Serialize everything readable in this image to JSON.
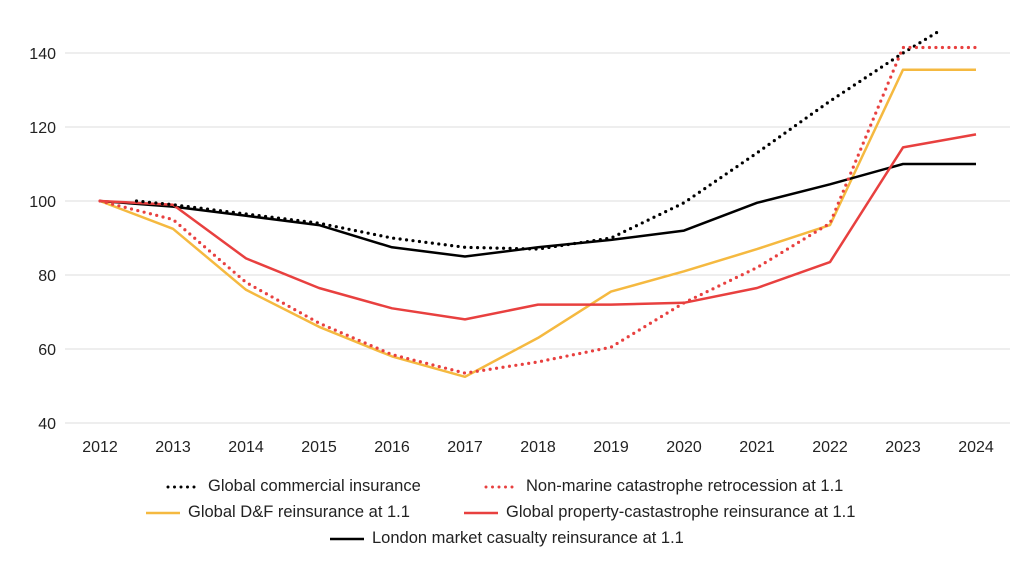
{
  "chart_data": {
    "type": "line",
    "title": "",
    "xlabel": "",
    "ylabel": "",
    "x": [
      2012,
      2013,
      2014,
      2015,
      2016,
      2017,
      2018,
      2019,
      2020,
      2021,
      2022,
      2023,
      2024
    ],
    "x_tick_labels": [
      "2012",
      "2013",
      "2014",
      "2015",
      "2016",
      "2017",
      "2018",
      "2019",
      "2020",
      "2021",
      "2022",
      "2023",
      "2024"
    ],
    "y_ticks": [
      40,
      60,
      80,
      100,
      120,
      140
    ],
    "y_tick_labels": [
      "40",
      "60",
      "80",
      "100",
      "120",
      "140"
    ],
    "ylim": [
      40,
      146
    ],
    "grid": "horizontal",
    "legend_position": "bottom",
    "series": [
      {
        "name": "Global commercial insurance",
        "color": "#000000",
        "style": "dotted",
        "points": [
          [
            2012.5,
            100
          ],
          [
            2013,
            99
          ],
          [
            2014,
            96.5
          ],
          [
            2015,
            94
          ],
          [
            2016,
            90
          ],
          [
            2017,
            87.5
          ],
          [
            2018,
            87
          ],
          [
            2019,
            90
          ],
          [
            2020,
            99.5
          ],
          [
            2021,
            113
          ],
          [
            2022,
            127
          ],
          [
            2023,
            140
          ],
          [
            2023.5,
            146
          ]
        ]
      },
      {
        "name": "Non-marine catastrophe retrocession at 1.1",
        "color": "#e8403f",
        "style": "dotted",
        "values": [
          100,
          95,
          78,
          67,
          58.5,
          53.5,
          56.5,
          60.5,
          72.5,
          82,
          94,
          141.5,
          141.5
        ]
      },
      {
        "name": "Global D&F reinsurance at 1.1",
        "color": "#f5b940",
        "style": "solid",
        "values": [
          100,
          92.5,
          76,
          66,
          58,
          52.5,
          63,
          75.5,
          81,
          87,
          93.5,
          135.5,
          135.5
        ]
      },
      {
        "name": "Global property-castastrophe reinsurance at 1.1",
        "color": "#e8403f",
        "style": "solid",
        "values": [
          100,
          99,
          84.5,
          76.5,
          71,
          68,
          72,
          72,
          72.5,
          76.5,
          83.5,
          114.5,
          118
        ]
      },
      {
        "name": "London market casualty reinsurance at 1.1",
        "color": "#000000",
        "style": "solid",
        "values": [
          100,
          98.5,
          96,
          93.5,
          87.5,
          85,
          87.5,
          89.5,
          92,
          99.5,
          104.5,
          110,
          110
        ]
      }
    ]
  }
}
